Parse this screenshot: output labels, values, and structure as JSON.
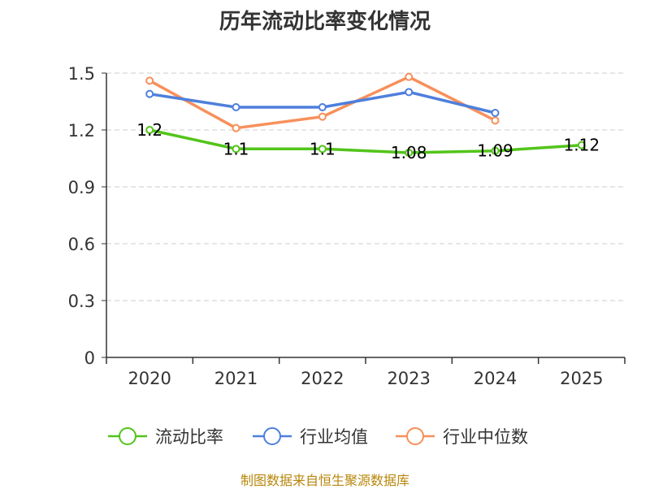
{
  "chart_data": {
    "type": "line",
    "title": "历年流动比率变化情况",
    "categories": [
      "2020",
      "2021",
      "2022",
      "2023",
      "2024",
      "2025"
    ],
    "ylim": [
      0,
      1.5
    ],
    "yticks": [
      "0",
      "0.3",
      "0.6",
      "0.9",
      "1.2",
      "1.5"
    ],
    "grid": true,
    "legend_position": "bottom",
    "series": [
      {
        "name": "流动比率",
        "color": "#52c41a",
        "values": [
          1.2,
          1.1,
          1.1,
          1.08,
          1.09,
          1.12
        ],
        "labels": [
          "1.2",
          "1.1",
          "1.1",
          "1.08",
          "1.09",
          "1.12"
        ]
      },
      {
        "name": "行业均值",
        "color": "#4e7fdc",
        "values": [
          1.39,
          1.32,
          1.32,
          1.4,
          1.29,
          null
        ]
      },
      {
        "name": "行业中位数",
        "color": "#f7905b",
        "values": [
          1.46,
          1.21,
          1.27,
          1.48,
          1.25,
          null
        ]
      }
    ]
  },
  "source": "制图数据来自恒生聚源数据库"
}
